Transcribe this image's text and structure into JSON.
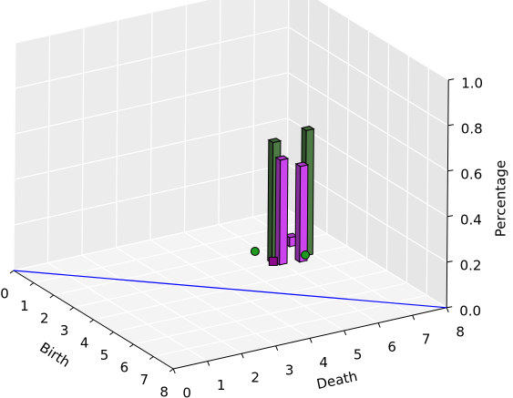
{
  "chart_data": {
    "type": "bar3d",
    "xlabel": "Birth",
    "ylabel": "Death",
    "zlabel": "Percentage",
    "xlim": [
      0,
      8
    ],
    "ylim": [
      0,
      8
    ],
    "zlim": [
      0,
      1
    ],
    "xticks": [
      0,
      1,
      2,
      3,
      4,
      5,
      6,
      7,
      8
    ],
    "yticks": [
      0,
      1,
      2,
      3,
      4,
      5,
      6,
      7,
      8
    ],
    "zticks": [
      {
        "value": 0,
        "label": "0.0"
      },
      0.2,
      0.4,
      0.6,
      0.8,
      {
        "value": 1,
        "label": "1.0"
      }
    ],
    "grid": true,
    "bars": {
      "x": [
        2.8,
        2.8,
        3.0,
        3.1,
        2.05
      ],
      "y": [
        5.8,
        6.77,
        5.9,
        6.43,
        6.75
      ],
      "values": [
        0.53,
        0.55,
        0.46,
        0.42,
        0.04
      ],
      "colors": [
        "#4e7a45",
        "#4e7a45",
        "#cc44ee",
        "#cc44ee",
        "#cc44ee"
      ]
    },
    "points": {
      "x": [
        2.08,
        2.97,
        2.92
      ],
      "y": [
        5.85,
        6.8,
        5.89
      ],
      "z": [
        0,
        0,
        0
      ],
      "colors": [
        "#1e9a1e",
        "#1e9a1e",
        "#8a0a8a"
      ],
      "markers": [
        "circle",
        "circle",
        "square"
      ]
    },
    "line": {
      "x": [
        0,
        8
      ],
      "y": [
        0,
        8
      ],
      "z": [
        0,
        0
      ],
      "color": "#0000ff"
    }
  }
}
